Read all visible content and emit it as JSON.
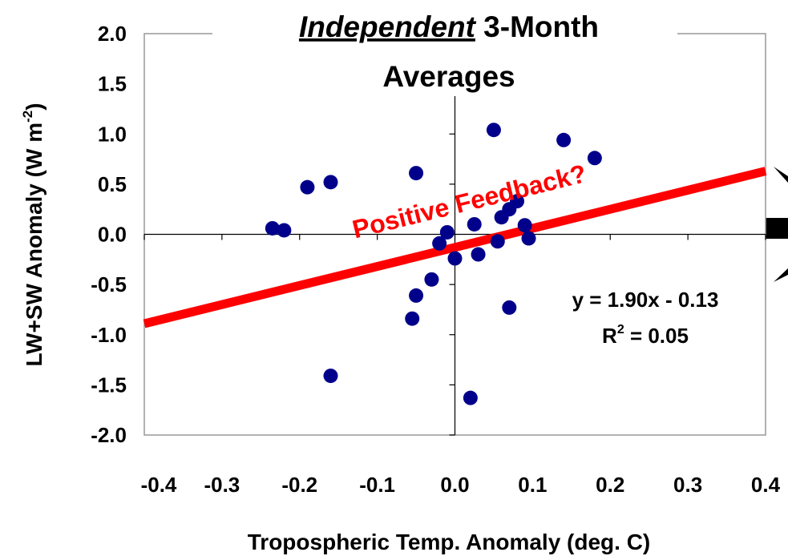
{
  "chart_data": {
    "type": "scatter",
    "title": {
      "italic": "Independent",
      "rest": " 3-Month",
      "line2": "Averages"
    },
    "x_label": "Tropospheric Temp. Anomaly (deg. C)",
    "y_label": {
      "main": "LW+SW Anomaly (W m",
      "sup": "-2",
      "end": ")"
    },
    "xlim": [
      -0.4,
      0.4
    ],
    "ylim": [
      -2.0,
      2.0
    ],
    "xticks": [
      {
        "value": -0.4,
        "label": "-0.4"
      },
      {
        "value": -0.3,
        "label": "-0.3"
      },
      {
        "value": -0.2,
        "label": "-0.2"
      },
      {
        "value": -0.1,
        "label": "-0.1"
      },
      {
        "value": 0,
        "label": "0.0"
      },
      {
        "value": 0.1,
        "label": "0.1"
      },
      {
        "value": 0.2,
        "label": "0.2"
      },
      {
        "value": 0.3,
        "label": "0.3"
      },
      {
        "value": 0.4,
        "label": "0.4"
      }
    ],
    "yticks": [
      {
        "value": 2,
        "label": "2.0"
      },
      {
        "value": 1.5,
        "label": "1.5"
      },
      {
        "value": 1,
        "label": "1.0"
      },
      {
        "value": 0.5,
        "label": "0.5"
      },
      {
        "value": 0,
        "label": "0.0"
      },
      {
        "value": -0.5,
        "label": "-0.5"
      },
      {
        "value": -1,
        "label": "-1.0"
      },
      {
        "value": -1.5,
        "label": "-1.5"
      },
      {
        "value": -2,
        "label": "-2.0"
      }
    ],
    "series": [
      {
        "color": "#00008b",
        "x": [
          0.05,
          0.14,
          0.18,
          -0.05,
          -0.19,
          -0.16,
          -0.235,
          -0.22,
          -0.01,
          -0.02,
          0.0,
          0.03,
          0.025,
          0.06,
          0.07,
          0.08,
          0.055,
          0.09,
          0.095,
          -0.03,
          -0.05,
          -0.055,
          0.07,
          -0.16,
          0.02
        ],
        "values": [
          1.04,
          0.94,
          0.76,
          0.61,
          0.47,
          0.52,
          0.06,
          0.04,
          0.02,
          -0.09,
          -0.24,
          -0.2,
          0.1,
          0.17,
          0.25,
          0.33,
          -0.07,
          0.09,
          -0.04,
          -0.45,
          -0.61,
          -0.84,
          -0.73,
          -1.41,
          -1.63
        ]
      }
    ],
    "trendline": {
      "color": "#ff0000",
      "x": [
        -0.4,
        0.4
      ],
      "values": [
        -0.89,
        0.63
      ]
    },
    "annotation": "Positive Feedback?",
    "equation": "y = 1.90x - 0.13",
    "r_squared": {
      "label": "R",
      "sup": "2",
      "rest": " = 0.05"
    }
  }
}
